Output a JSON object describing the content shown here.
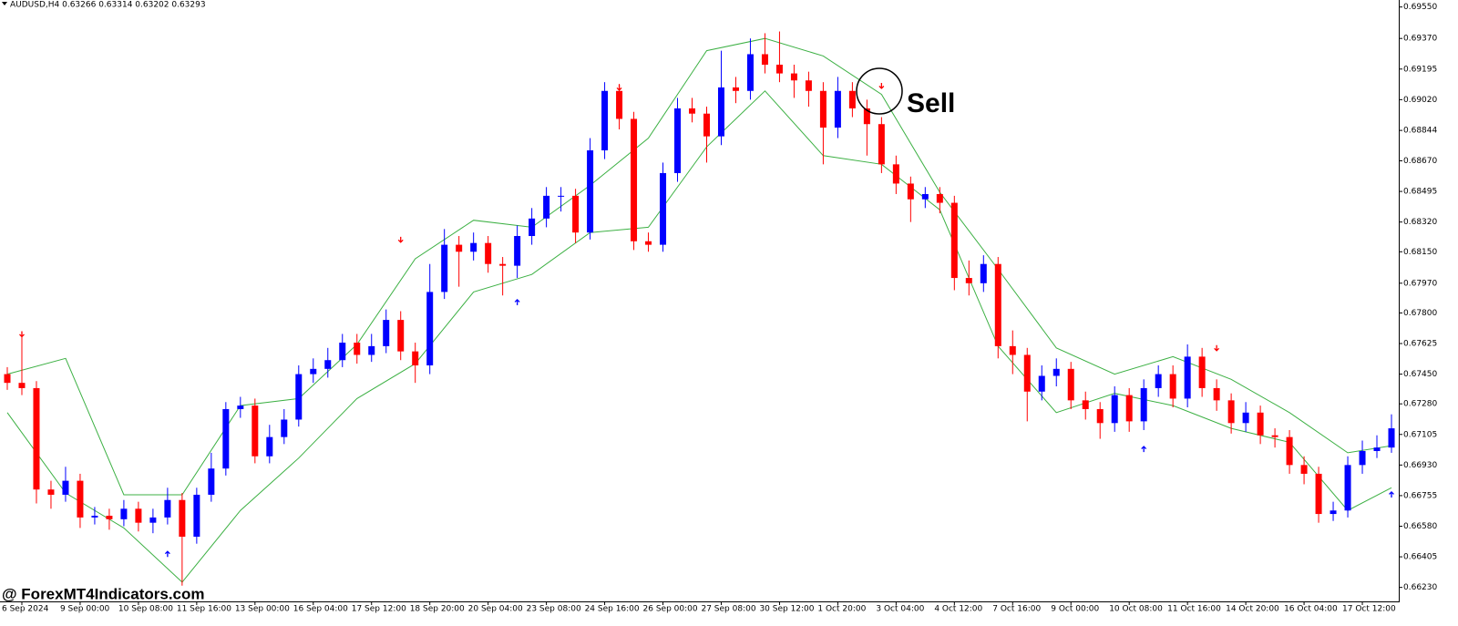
{
  "chart_data": {
    "type": "candlestick",
    "header": "AUDUSD,H4  0.63266 0.63314 0.63202 0.63293",
    "watermark": "@ ForexMT4Indicators.com",
    "annotation": "Sell",
    "bull_color": "#0000ff",
    "bear_color": "#ff0000",
    "grid": false,
    "ylim": [
      0.6615,
      0.6959
    ],
    "yticks": [
      {
        "value": 0.6955,
        "label": "0.69550"
      },
      {
        "value": 0.6937,
        "label": "0.69370"
      },
      {
        "value": 0.69195,
        "label": "0.69195"
      },
      {
        "value": 0.6902,
        "label": "0.69020"
      },
      {
        "value": 0.68844,
        "label": "0.68844"
      },
      {
        "value": 0.6867,
        "label": "0.68670"
      },
      {
        "value": 0.68495,
        "label": "0.68495"
      },
      {
        "value": 0.6832,
        "label": "0.68320"
      },
      {
        "value": 0.6815,
        "label": "0.68150"
      },
      {
        "value": 0.6797,
        "label": "0.67970"
      },
      {
        "value": 0.678,
        "label": "0.67800"
      },
      {
        "value": 0.67625,
        "label": "0.67625"
      },
      {
        "value": 0.6745,
        "label": "0.67450"
      },
      {
        "value": 0.6728,
        "label": "0.67280"
      },
      {
        "value": 0.67105,
        "label": "0.67105"
      },
      {
        "value": 0.6693,
        "label": "0.66930"
      },
      {
        "value": 0.66755,
        "label": "0.66755"
      },
      {
        "value": 0.6658,
        "label": "0.66580"
      },
      {
        "value": 0.66405,
        "label": "0.66405"
      },
      {
        "value": 0.6623,
        "label": "0.66230"
      }
    ],
    "categories": [
      null,
      "6 Sep 2024",
      null,
      null,
      null,
      "9 Sep 00:00",
      null,
      null,
      null,
      "10 Sep 08:00",
      null,
      null,
      null,
      "11 Sep 16:00",
      null,
      null,
      null,
      "13 Sep 00:00",
      null,
      null,
      null,
      "16 Sep 04:00",
      null,
      null,
      null,
      "17 Sep 12:00",
      null,
      null,
      null,
      "18 Sep 20:00",
      null,
      null,
      null,
      "20 Sep 04:00",
      null,
      null,
      null,
      "23 Sep 08:00",
      null,
      null,
      null,
      "24 Sep 16:00",
      null,
      null,
      null,
      "26 Sep 00:00",
      null,
      null,
      null,
      "27 Sep 08:00",
      null,
      null,
      null,
      "30 Sep 12:00",
      null,
      null,
      null,
      "1 Oct 20:00",
      null,
      null,
      null,
      "3 Oct 04:00",
      null,
      null,
      null,
      "4 Oct 12:00",
      null,
      null,
      null,
      "7 Oct 16:00",
      null,
      null,
      null,
      "9 Oct 00:00",
      null,
      null,
      null,
      "10 Oct 08:00",
      null,
      null,
      null,
      "11 Oct 16:00",
      null,
      null,
      null,
      "14 Oct 20:00",
      null,
      null,
      null,
      "16 Oct 04:00",
      null,
      null,
      null,
      "17 Oct 12:00",
      null,
      null
    ],
    "open": [
      0.6745,
      0.674,
      0.6737,
      0.6679,
      0.6676,
      0.6684,
      0.6663,
      0.6664,
      0.6662,
      0.6668,
      0.666,
      0.6663,
      0.6673,
      0.6652,
      0.6676,
      0.6691,
      0.6725,
      0.6727,
      0.6698,
      0.6709,
      0.6719,
      0.6745,
      0.6748,
      0.6753,
      0.6763,
      0.6756,
      0.6761,
      0.6776,
      0.6758,
      0.675,
      0.6792,
      0.6819,
      0.6815,
      0.682,
      0.6808,
      0.6807,
      0.6824,
      0.6834,
      0.6847,
      0.6847,
      0.6826,
      0.6873,
      0.6907,
      0.6891,
      0.6821,
      0.6819,
      0.686,
      0.6897,
      0.6894,
      0.6881,
      0.6909,
      0.6907,
      0.6928,
      0.6922,
      0.6917,
      0.6913,
      0.6907,
      0.6886,
      0.6907,
      0.6897,
      0.6888,
      0.6865,
      0.6854,
      0.6845,
      0.6848,
      0.6843,
      0.68,
      0.6797,
      0.6808,
      0.6761,
      0.6756,
      0.6735,
      0.6744,
      0.6748,
      0.673,
      0.6725,
      0.6717,
      0.6733,
      0.6718,
      0.6737,
      0.6745,
      0.6731,
      0.6755,
      0.6737,
      0.673,
      0.6717,
      0.6723,
      0.671,
      0.6709,
      0.6693,
      0.6688,
      0.6665,
      0.6667,
      0.6693,
      0.6701,
      0.6703
    ],
    "high": [
      0.6749,
      0.6769,
      0.6741,
      0.6684,
      0.6692,
      0.6688,
      0.6669,
      0.6668,
      0.6673,
      0.6672,
      0.6668,
      0.668,
      0.6677,
      0.668,
      0.67,
      0.6729,
      0.6732,
      0.6731,
      0.6716,
      0.6725,
      0.675,
      0.6754,
      0.676,
      0.6768,
      0.6768,
      0.6768,
      0.6782,
      0.6781,
      0.6763,
      0.6808,
      0.6828,
      0.6824,
      0.6826,
      0.6824,
      0.6812,
      0.683,
      0.684,
      0.6852,
      0.6852,
      0.6851,
      0.688,
      0.6912,
      0.6911,
      0.6895,
      0.6826,
      0.6866,
      0.6903,
      0.6903,
      0.6898,
      0.693,
      0.6915,
      0.6937,
      0.694,
      0.6941,
      0.6922,
      0.6918,
      0.6912,
      0.6915,
      0.6912,
      0.6902,
      0.6892,
      0.687,
      0.6858,
      0.6852,
      0.6852,
      0.6847,
      0.681,
      0.6813,
      0.6812,
      0.677,
      0.676,
      0.675,
      0.6754,
      0.6752,
      0.6735,
      0.6729,
      0.6738,
      0.6737,
      0.6742,
      0.675,
      0.675,
      0.6762,
      0.676,
      0.6742,
      0.6734,
      0.6729,
      0.6727,
      0.6714,
      0.6713,
      0.6698,
      0.6692,
      0.6672,
      0.6698,
      0.6707,
      0.671,
      0.6722
    ],
    "low": [
      0.6736,
      0.6733,
      0.6671,
      0.6668,
      0.6672,
      0.6657,
      0.6659,
      0.6656,
      0.6658,
      0.6655,
      0.6654,
      0.6659,
      0.6624,
      0.6648,
      0.6672,
      0.6687,
      0.672,
      0.6694,
      0.6694,
      0.6705,
      0.6715,
      0.674,
      0.6743,
      0.6749,
      0.6751,
      0.6752,
      0.6757,
      0.6753,
      0.674,
      0.6745,
      0.6788,
      0.6795,
      0.681,
      0.6803,
      0.679,
      0.68,
      0.6819,
      0.6829,
      0.6838,
      0.682,
      0.6822,
      0.6868,
      0.6885,
      0.6816,
      0.6815,
      0.6815,
      0.6855,
      0.6889,
      0.6866,
      0.6876,
      0.69,
      0.6902,
      0.6917,
      0.6912,
      0.6903,
      0.6898,
      0.6865,
      0.688,
      0.6892,
      0.687,
      0.686,
      0.6848,
      0.6832,
      0.684,
      0.6837,
      0.6793,
      0.679,
      0.6792,
      0.6754,
      0.6745,
      0.6718,
      0.673,
      0.6738,
      0.6725,
      0.6719,
      0.6708,
      0.6712,
      0.6712,
      0.6713,
      0.6732,
      0.6726,
      0.6726,
      0.6732,
      0.6724,
      0.6711,
      0.6712,
      0.6705,
      0.6703,
      0.6688,
      0.6682,
      0.666,
      0.6661,
      0.6663,
      0.6688,
      0.6697,
      0.67
    ],
    "close": [
      0.674,
      0.6737,
      0.6679,
      0.6676,
      0.6684,
      0.6663,
      0.6664,
      0.6662,
      0.6668,
      0.666,
      0.6663,
      0.6673,
      0.6652,
      0.6676,
      0.6691,
      0.6725,
      0.6727,
      0.6698,
      0.6709,
      0.6719,
      0.6745,
      0.6748,
      0.6753,
      0.6763,
      0.6756,
      0.6761,
      0.6776,
      0.6758,
      0.675,
      0.6792,
      0.6819,
      0.6815,
      0.682,
      0.6808,
      0.6807,
      0.6824,
      0.6834,
      0.6847,
      0.6847,
      0.6826,
      0.6873,
      0.6907,
      0.6891,
      0.6821,
      0.6819,
      0.686,
      0.6897,
      0.6894,
      0.6881,
      0.6909,
      0.6907,
      0.6928,
      0.6922,
      0.6917,
      0.6913,
      0.6907,
      0.6886,
      0.6907,
      0.6897,
      0.6888,
      0.6865,
      0.6854,
      0.6845,
      0.6848,
      0.6843,
      0.68,
      0.6797,
      0.6808,
      0.6761,
      0.6756,
      0.6735,
      0.6744,
      0.6748,
      0.673,
      0.6725,
      0.6717,
      0.6733,
      0.6718,
      0.6737,
      0.6745,
      0.6731,
      0.6755,
      0.6737,
      0.673,
      0.6717,
      0.6723,
      0.671,
      0.6709,
      0.6693,
      0.6688,
      0.6665,
      0.6667,
      0.6693,
      0.6701,
      0.6703,
      0.6714
    ],
    "bands": {
      "color": "#3cb043",
      "x": [
        0,
        4,
        8,
        12,
        16,
        20,
        24,
        28,
        32,
        36,
        40,
        44,
        48,
        52,
        56,
        60,
        64,
        68,
        72,
        76,
        80,
        84,
        88,
        92,
        95
      ],
      "upper": [
        0.6745,
        0.6754,
        0.6676,
        0.6676,
        0.6727,
        0.6731,
        0.6762,
        0.6811,
        0.6833,
        0.6829,
        0.6853,
        0.688,
        0.693,
        0.6937,
        0.6927,
        0.6905,
        0.6849,
        0.6805,
        0.676,
        0.6745,
        0.6755,
        0.6742,
        0.6723,
        0.67,
        0.6704
      ],
      "lower": [
        0.6723,
        0.6677,
        0.6657,
        0.6626,
        0.6667,
        0.6697,
        0.6731,
        0.6751,
        0.6792,
        0.6802,
        0.6826,
        0.6829,
        0.6875,
        0.6907,
        0.687,
        0.6865,
        0.6839,
        0.6761,
        0.6723,
        0.6734,
        0.6727,
        0.6714,
        0.6706,
        0.6667,
        0.668
      ]
    },
    "signals": [
      {
        "index": 11,
        "price": 0.6642,
        "direction": "up"
      },
      {
        "index": 35,
        "price": 0.6786,
        "direction": "up"
      },
      {
        "index": 45,
        "price": 0.6822,
        "direction": "up"
      },
      {
        "index": 78,
        "price": 0.6702,
        "direction": "up"
      },
      {
        "index": 95,
        "price": 0.6676,
        "direction": "up"
      },
      {
        "index": 1,
        "price": 0.6768,
        "direction": "down"
      },
      {
        "index": 27,
        "price": 0.6822,
        "direction": "down"
      },
      {
        "index": 42,
        "price": 0.6909,
        "direction": "down"
      },
      {
        "index": 60,
        "price": 0.691,
        "direction": "down"
      },
      {
        "index": 83,
        "price": 0.676,
        "direction": "down"
      }
    ]
  }
}
